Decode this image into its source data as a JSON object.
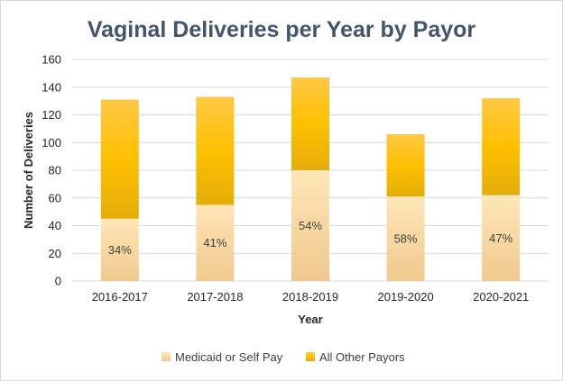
{
  "chart_data": {
    "type": "bar",
    "stacked": true,
    "title": "Vaginal Deliveries per Year by Payor",
    "xlabel": "Year",
    "ylabel": "Number of Deliveries",
    "ylim": [
      0,
      160
    ],
    "yticks": [
      0,
      20,
      40,
      60,
      80,
      100,
      120,
      140,
      160
    ],
    "grid": true,
    "legend_position": "bottom",
    "categories": [
      "2016-2017",
      "2017-2018",
      "2018-2019",
      "2019-2020",
      "2020-2021"
    ],
    "series": [
      {
        "name": "Medicaid or Self Pay",
        "values": [
          45,
          55,
          80,
          61,
          62
        ],
        "data_labels": [
          "34%",
          "41%",
          "54%",
          "58%",
          "47%"
        ],
        "color": "#fce0b0"
      },
      {
        "name": "All Other Payors",
        "values": [
          86,
          78,
          67,
          45,
          70
        ],
        "color": "#ffc000"
      }
    ],
    "colors": {
      "title": "#44546a",
      "gridline": "#d9d9d9",
      "text": "#262626"
    }
  }
}
